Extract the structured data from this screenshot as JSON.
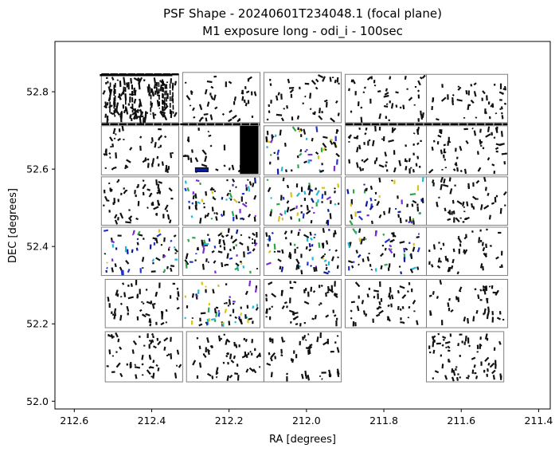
{
  "chart_data": {
    "type": "scatter",
    "title": "PSF Shape - 20240601T234048.1 (focal plane)",
    "subtitle": "M1 exposure long - odi_i - 100sec",
    "xlabel": "RA [degrees]",
    "ylabel": "DEC [degrees]",
    "xlim": [
      212.65,
      211.37
    ],
    "ylim": [
      51.98,
      52.93
    ],
    "x_inverted": true,
    "xticks": [
      212.6,
      212.4,
      212.2,
      212.0,
      211.8,
      211.6,
      211.4
    ],
    "xtick_labels": [
      "212.6",
      "212.4",
      "212.2",
      "212.0",
      "211.8",
      "211.6",
      "211.4"
    ],
    "yticks": [
      52.0,
      52.2,
      52.4,
      52.6,
      52.8
    ],
    "ytick_labels": [
      "52.0",
      "52.2",
      "52.4",
      "52.6",
      "52.8"
    ],
    "grid": false,
    "legend": "none",
    "colors": {
      "frame": "#000000",
      "chip_border": "#7f7f7f",
      "marker": "#111111",
      "accents": [
        "#2233cc",
        "#7a2bd6",
        "#1fb8d8",
        "#28a844",
        "#d9c21a",
        "#0a1a99"
      ]
    },
    "chips": [
      {
        "row": 0,
        "col": 0,
        "ra": [
          212.53,
          212.33
        ],
        "dec": [
          52.72,
          52.845
        ],
        "colored": false,
        "density": 110,
        "dense": true
      },
      {
        "row": 0,
        "col": 1,
        "ra": [
          212.32,
          212.12
        ],
        "dec": [
          52.72,
          52.85
        ],
        "colored": false,
        "density": 45
      },
      {
        "row": 0,
        "col": 2,
        "ra": [
          212.11,
          211.91
        ],
        "dec": [
          52.72,
          52.85
        ],
        "colored": false,
        "density": 45
      },
      {
        "row": 0,
        "col": 3,
        "ra": [
          211.9,
          211.69
        ],
        "dec": [
          52.72,
          52.845
        ],
        "colored": false,
        "density": 45
      },
      {
        "row": 0,
        "col": 4,
        "ra": [
          211.69,
          211.48
        ],
        "dec": [
          52.72,
          52.845
        ],
        "colored": false,
        "density": 45
      },
      {
        "row": 1,
        "col": 0,
        "ra": [
          212.53,
          212.33
        ],
        "dec": [
          52.585,
          52.712
        ],
        "colored": false,
        "density": 50
      },
      {
        "row": 1,
        "col": 1,
        "ra": [
          212.32,
          212.12
        ],
        "dec": [
          52.585,
          52.712
        ],
        "colored": false,
        "density": 30,
        "saturated_block": true
      },
      {
        "row": 1,
        "col": 2,
        "ra": [
          212.11,
          211.91
        ],
        "dec": [
          52.585,
          52.712
        ],
        "colored": true,
        "density": 60
      },
      {
        "row": 1,
        "col": 3,
        "ra": [
          211.9,
          211.69
        ],
        "dec": [
          52.585,
          52.712
        ],
        "colored": false,
        "density": 55
      },
      {
        "row": 1,
        "col": 4,
        "ra": [
          211.69,
          211.48
        ],
        "dec": [
          52.585,
          52.712
        ],
        "colored": false,
        "density": 55
      },
      {
        "row": 2,
        "col": 0,
        "ra": [
          212.53,
          212.33
        ],
        "dec": [
          52.455,
          52.58
        ],
        "colored": false,
        "density": 60
      },
      {
        "row": 2,
        "col": 1,
        "ra": [
          212.32,
          212.12
        ],
        "dec": [
          52.455,
          52.58
        ],
        "colored": true,
        "density": 70
      },
      {
        "row": 2,
        "col": 2,
        "ra": [
          212.11,
          211.91
        ],
        "dec": [
          52.455,
          52.58
        ],
        "colored": true,
        "density": 60
      },
      {
        "row": 2,
        "col": 3,
        "ra": [
          211.9,
          211.69
        ],
        "dec": [
          52.455,
          52.58
        ],
        "colored": true,
        "density": 55
      },
      {
        "row": 2,
        "col": 4,
        "ra": [
          211.69,
          211.48
        ],
        "dec": [
          52.455,
          52.58
        ],
        "colored": false,
        "density": 50
      },
      {
        "row": 3,
        "col": 0,
        "ra": [
          212.53,
          212.33
        ],
        "dec": [
          52.325,
          52.45
        ],
        "colored": true,
        "density": 60
      },
      {
        "row": 3,
        "col": 1,
        "ra": [
          212.32,
          212.12
        ],
        "dec": [
          52.325,
          52.45
        ],
        "colored": true,
        "density": 70
      },
      {
        "row": 3,
        "col": 2,
        "ra": [
          212.11,
          211.91
        ],
        "dec": [
          52.325,
          52.45
        ],
        "colored": true,
        "density": 70
      },
      {
        "row": 3,
        "col": 3,
        "ra": [
          211.9,
          211.69
        ],
        "dec": [
          52.325,
          52.45
        ],
        "colored": true,
        "density": 60
      },
      {
        "row": 3,
        "col": 4,
        "ra": [
          211.69,
          211.48
        ],
        "dec": [
          52.325,
          52.45
        ],
        "colored": false,
        "density": 45
      },
      {
        "row": 4,
        "col": 0,
        "ra": [
          212.52,
          212.32
        ],
        "dec": [
          52.19,
          52.315
        ],
        "colored": false,
        "density": 55
      },
      {
        "row": 4,
        "col": 1,
        "ra": [
          212.32,
          212.12
        ],
        "dec": [
          52.19,
          52.315
        ],
        "colored": true,
        "density": 65
      },
      {
        "row": 4,
        "col": 2,
        "ra": [
          212.11,
          211.91
        ],
        "dec": [
          52.19,
          52.315
        ],
        "colored": false,
        "density": 55
      },
      {
        "row": 4,
        "col": 3,
        "ra": [
          211.9,
          211.69
        ],
        "dec": [
          52.19,
          52.315
        ],
        "colored": false,
        "density": 50
      },
      {
        "row": 4,
        "col": 4,
        "ra": [
          211.69,
          211.48
        ],
        "dec": [
          52.19,
          52.315
        ],
        "colored": false,
        "density": 45
      },
      {
        "row": 5,
        "col": 0,
        "ra": [
          212.52,
          212.32
        ],
        "dec": [
          52.05,
          52.18
        ],
        "colored": false,
        "density": 55
      },
      {
        "row": 5,
        "col": 1,
        "ra": [
          212.31,
          212.11
        ],
        "dec": [
          52.05,
          52.18
        ],
        "colored": false,
        "density": 55
      },
      {
        "row": 5,
        "col": 2,
        "ra": [
          212.11,
          211.91
        ],
        "dec": [
          52.05,
          52.18
        ],
        "colored": false,
        "density": 50
      },
      {
        "row": 5,
        "col": 4,
        "ra": [
          211.69,
          211.49
        ],
        "dec": [
          52.05,
          52.18
        ],
        "colored": false,
        "density": 70
      }
    ]
  }
}
